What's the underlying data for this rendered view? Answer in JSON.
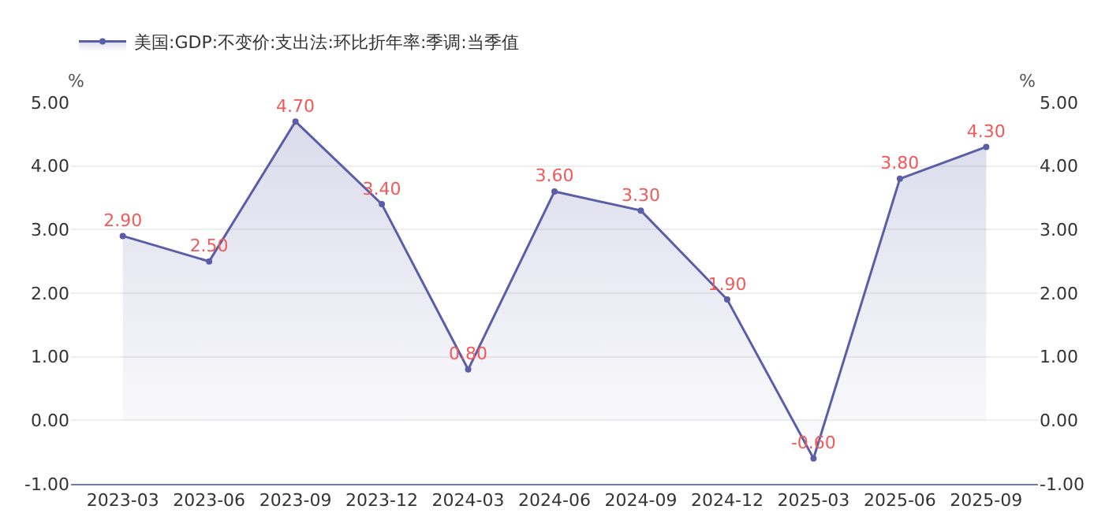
{
  "chart_data": {
    "type": "area",
    "ylabel": "%",
    "y2label": "%",
    "categories": [
      "2023-03",
      "2023-06",
      "2023-09",
      "2023-12",
      "2024-03",
      "2024-06",
      "2024-09",
      "2024-12",
      "2025-03",
      "2025-06",
      "2025-09"
    ],
    "series": [
      {
        "name": "美国:GDP:不变价:支出法:环比折年率:季调:当季值",
        "color": "#5b5ea6",
        "values": [
          2.9,
          2.5,
          4.7,
          3.4,
          0.8,
          3.6,
          3.3,
          1.9,
          -0.6,
          3.8,
          4.3
        ],
        "value_labels": [
          "2.90",
          "2.50",
          "4.70",
          "3.40",
          "0.80",
          "3.60",
          "3.30",
          "1.90",
          "-0.60",
          "3.80",
          "4.30"
        ]
      }
    ],
    "ylim": [
      -1,
      5
    ],
    "yticks": [
      {
        "value": -1,
        "label": "-1.00"
      },
      {
        "value": 0,
        "label": "0.00"
      },
      {
        "value": 1,
        "label": "1.00"
      },
      {
        "value": 2,
        "label": "2.00"
      },
      {
        "value": 3,
        "label": "3.00"
      },
      {
        "value": 4,
        "label": "4.00"
      },
      {
        "value": 5,
        "label": "5.00"
      }
    ],
    "y2lim": [
      -1,
      5
    ],
    "y2ticks": [
      {
        "value": -1,
        "label": "-1.00"
      },
      {
        "value": 0,
        "label": "0.00"
      },
      {
        "value": 1,
        "label": "1.00"
      },
      {
        "value": 2,
        "label": "2.00"
      },
      {
        "value": 3,
        "label": "3.00"
      },
      {
        "value": 4,
        "label": "4.00"
      },
      {
        "value": 5,
        "label": "5.00"
      }
    ],
    "grid": "y",
    "legend": "top left",
    "marker": "circle",
    "line_style": "solid"
  }
}
